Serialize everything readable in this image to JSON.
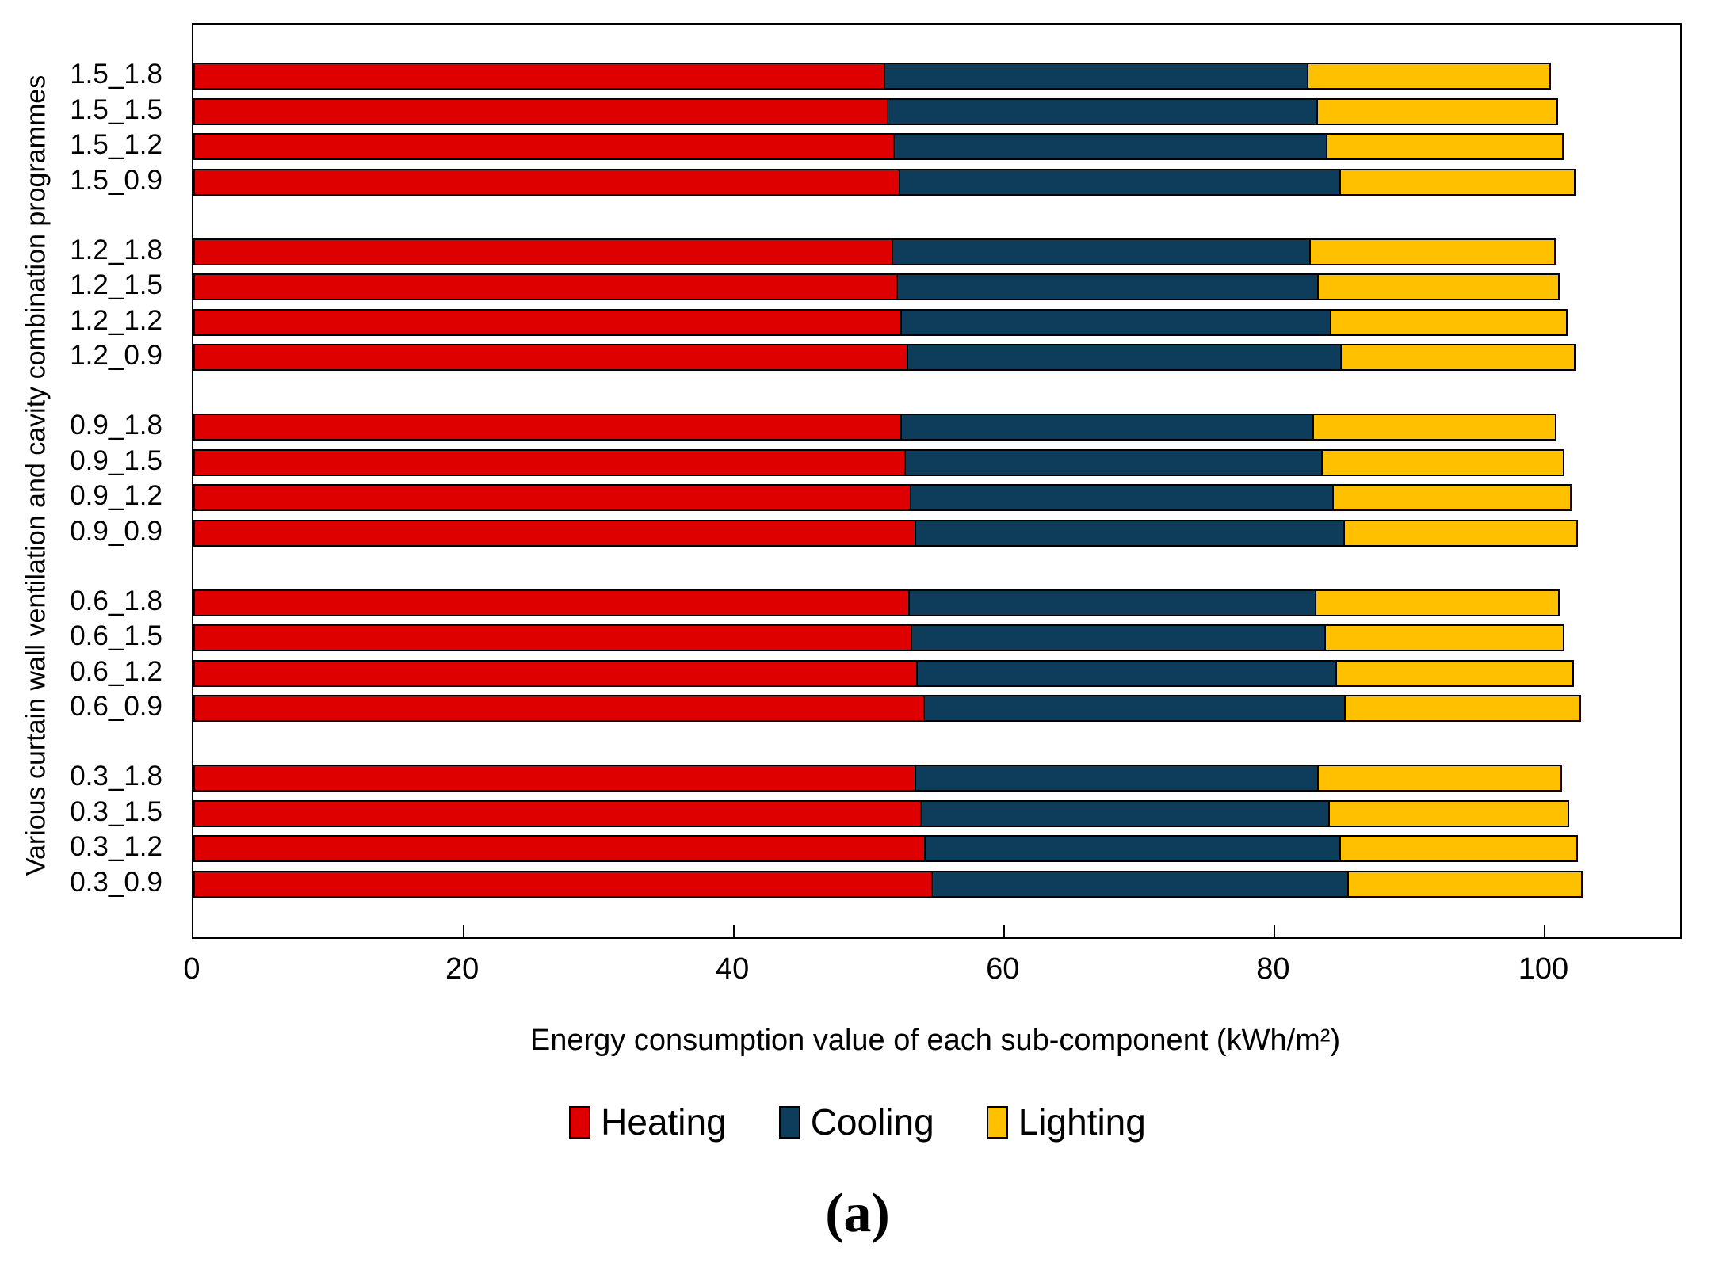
{
  "figure": {
    "caption": "(a)"
  },
  "chart_data": {
    "type": "bar",
    "orientation": "horizontal",
    "stacked": true,
    "grid": false,
    "legend_position": "bottom",
    "xlabel": "Energy consumption value of each sub-component (kWh/m²)",
    "ylabel": "Various curtain wall ventilation and cavity combination programmes",
    "xlim": [
      0,
      110
    ],
    "x_ticks": [
      0,
      20,
      40,
      60,
      80,
      100
    ],
    "group_size": 4,
    "categories": [
      "1.5_1.8",
      "1.5_1.5",
      "1.5_1.2",
      "1.5_0.9",
      "1.2_1.8",
      "1.2_1.5",
      "1.2_1.2",
      "1.2_0.9",
      "0.9_1.8",
      "0.9_1.5",
      "0.9_1.2",
      "0.9_0.9",
      "0.6_1.8",
      "0.6_1.5",
      "0.6_1.2",
      "0.6_0.9",
      "0.3_1.8",
      "0.3_1.5",
      "0.3_1.2",
      "0.3_0.9"
    ],
    "series": [
      {
        "name": "Heating",
        "color": "#DE0000",
        "values": [
          51.2,
          51.4,
          51.9,
          52.3,
          51.8,
          52.1,
          52.4,
          52.9,
          52.4,
          52.7,
          53.1,
          53.5,
          53.0,
          53.2,
          53.6,
          54.1,
          53.5,
          53.9,
          54.2,
          54.7
        ]
      },
      {
        "name": "Cooling",
        "color": "#0E3D5C",
        "values": [
          31.4,
          31.9,
          32.1,
          32.7,
          31.0,
          31.3,
          31.9,
          32.2,
          30.6,
          31.0,
          31.4,
          31.8,
          30.2,
          30.7,
          31.1,
          31.3,
          29.9,
          30.3,
          30.8,
          30.9
        ]
      },
      {
        "name": "Lighting",
        "color": "#FFC000",
        "values": [
          18.1,
          17.9,
          17.6,
          17.5,
          18.2,
          17.9,
          17.6,
          17.4,
          18.1,
          18.0,
          17.7,
          17.4,
          18.1,
          17.8,
          17.7,
          17.5,
          18.1,
          17.8,
          17.7,
          17.4
        ]
      }
    ]
  }
}
